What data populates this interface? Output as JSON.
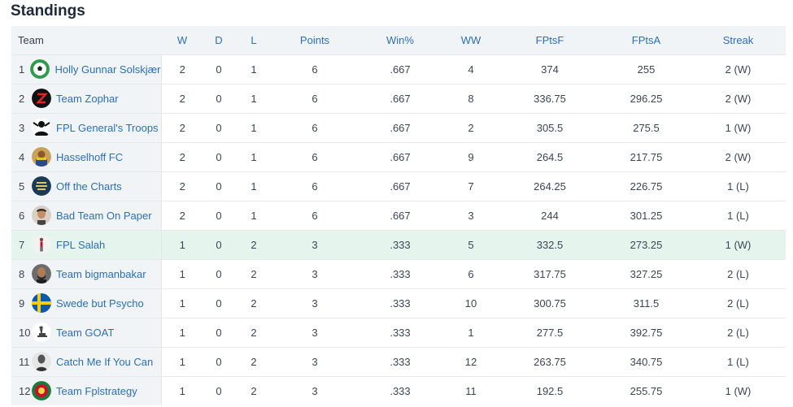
{
  "title": "Standings",
  "columns": [
    "Team",
    "W",
    "D",
    "L",
    "Points",
    "Win%",
    "WW",
    "FPtsF",
    "FPtsA",
    "Streak"
  ],
  "rows": [
    {
      "rank": "1",
      "team": "Holly Gunnar Solskjær",
      "avatar": "football-icon",
      "w": "2",
      "d": "0",
      "l": "1",
      "points": "6",
      "winpct": ".667",
      "ww": "4",
      "fptsf": "374",
      "fptsa": "255",
      "streak": "2 (W)"
    },
    {
      "rank": "2",
      "team": "Team Zophar",
      "avatar": "z-logo-icon",
      "w": "2",
      "d": "0",
      "l": "1",
      "points": "6",
      "winpct": ".667",
      "ww": "8",
      "fptsf": "336.75",
      "fptsa": "296.25",
      "streak": "2 (W)"
    },
    {
      "rank": "3",
      "team": "FPL General's Troops",
      "avatar": "silhouette-icon",
      "w": "2",
      "d": "0",
      "l": "1",
      "points": "6",
      "winpct": ".667",
      "ww": "2",
      "fptsf": "305.5",
      "fptsa": "275.5",
      "streak": "1 (W)"
    },
    {
      "rank": "4",
      "team": "Hasselhoff FC",
      "avatar": "person-photo-icon",
      "w": "2",
      "d": "0",
      "l": "1",
      "points": "6",
      "winpct": ".667",
      "ww": "9",
      "fptsf": "264.5",
      "fptsa": "217.75",
      "streak": "2 (W)"
    },
    {
      "rank": "5",
      "team": "Off the Charts",
      "avatar": "text-badge-icon",
      "w": "2",
      "d": "0",
      "l": "1",
      "points": "6",
      "winpct": ".667",
      "ww": "7",
      "fptsf": "264.25",
      "fptsa": "226.75",
      "streak": "1 (L)"
    },
    {
      "rank": "6",
      "team": "Bad Team On Paper",
      "avatar": "face-photo-icon",
      "w": "2",
      "d": "0",
      "l": "1",
      "points": "6",
      "winpct": ".667",
      "ww": "3",
      "fptsf": "244",
      "fptsa": "301.25",
      "streak": "1 (L)"
    },
    {
      "rank": "7",
      "team": "FPL Salah",
      "avatar": "player-figure-icon",
      "w": "1",
      "d": "0",
      "l": "2",
      "points": "3",
      "winpct": ".333",
      "ww": "5",
      "fptsf": "332.5",
      "fptsa": "273.25",
      "streak": "1 (W)",
      "highlight": true
    },
    {
      "rank": "8",
      "team": "Team bigmanbakar",
      "avatar": "portrait-photo-icon",
      "w": "1",
      "d": "0",
      "l": "2",
      "points": "3",
      "winpct": ".333",
      "ww": "6",
      "fptsf": "317.75",
      "fptsa": "327.25",
      "streak": "2 (L)"
    },
    {
      "rank": "9",
      "team": "Swede but Psycho",
      "avatar": "swedish-flag-icon",
      "w": "1",
      "d": "0",
      "l": "2",
      "points": "3",
      "winpct": ".333",
      "ww": "10",
      "fptsf": "300.75",
      "fptsa": "311.5",
      "streak": "2 (L)"
    },
    {
      "rank": "10",
      "team": "Team GOAT",
      "avatar": "goat-icon",
      "w": "1",
      "d": "0",
      "l": "2",
      "points": "3",
      "winpct": ".333",
      "ww": "1",
      "fptsf": "277.5",
      "fptsa": "392.75",
      "streak": "2 (L)"
    },
    {
      "rank": "11",
      "team": "Catch Me If You Can",
      "avatar": "bw-portrait-icon",
      "w": "1",
      "d": "0",
      "l": "2",
      "points": "3",
      "winpct": ".333",
      "ww": "12",
      "fptsf": "263.75",
      "fptsa": "340.75",
      "streak": "1 (L)"
    },
    {
      "rank": "12",
      "team": "Team Fplstrategy",
      "avatar": "crest-badge-icon",
      "w": "1",
      "d": "0",
      "l": "2",
      "points": "3",
      "winpct": ".333",
      "ww": "11",
      "fptsf": "192.5",
      "fptsa": "255.75",
      "streak": "1 (W)"
    }
  ]
}
